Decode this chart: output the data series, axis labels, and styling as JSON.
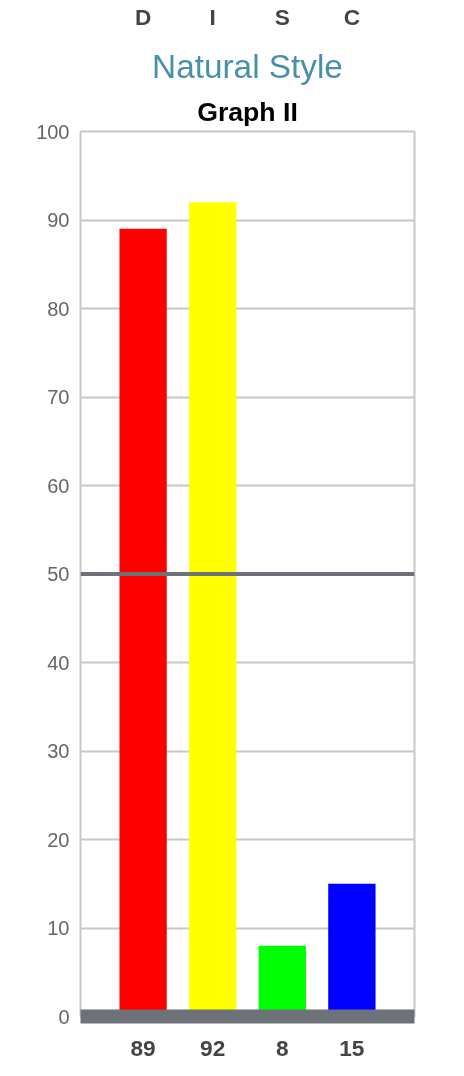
{
  "chart_data": {
    "type": "bar",
    "title": "Natural Style",
    "subtitle": "Graph II",
    "categories": [
      "D",
      "I",
      "S",
      "C"
    ],
    "values": [
      89,
      92,
      8,
      15
    ],
    "colors": [
      "#ff0000",
      "#ffff00",
      "#00ff00",
      "#0000ff"
    ],
    "ylim": [
      0,
      100
    ],
    "yticks": [
      0,
      10,
      20,
      30,
      40,
      50,
      60,
      70,
      80,
      90,
      100
    ],
    "grid": "y",
    "data_labels": true,
    "ref_lines": [
      {
        "axis": "y",
        "value": 50,
        "color": "#6d7278"
      }
    ]
  }
}
